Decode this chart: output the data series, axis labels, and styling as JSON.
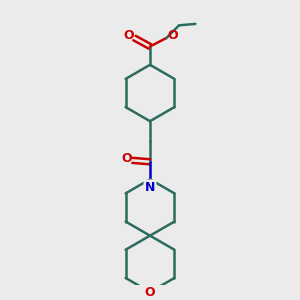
{
  "bg_color": "#ebebeb",
  "bond_color": "#2d6b5e",
  "o_color": "#cc0000",
  "n_color": "#0000cc",
  "line_width": 1.8,
  "figsize": [
    3.0,
    3.0
  ],
  "dpi": 100,
  "xlim": [
    0,
    10
  ],
  "ylim": [
    0,
    10
  ]
}
